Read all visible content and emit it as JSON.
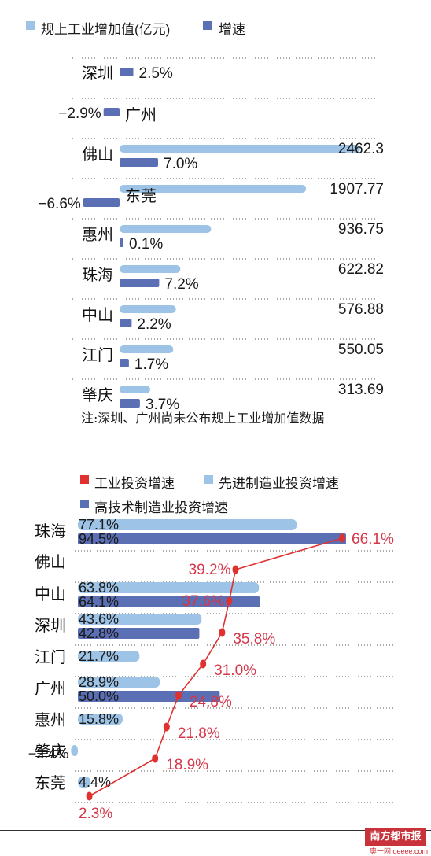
{
  "chart_data": [
    {
      "type": "bar",
      "orientation": "horizontal",
      "categories": [
        "深圳",
        "广州",
        "佛山",
        "东莞",
        "惠州",
        "珠海",
        "中山",
        "江门",
        "肇庆"
      ],
      "series": [
        {
          "name": "规上工业增加值(亿元)",
          "color": "#9dc3e6",
          "values": [
            null,
            null,
            2462.3,
            1907.77,
            936.75,
            622.82,
            576.88,
            550.05,
            313.69
          ],
          "labels": [
            "",
            "",
            "2462.3",
            "1907.77",
            "936.75",
            "622.82",
            "576.88",
            "550.05",
            "313.69"
          ]
        },
        {
          "name": "增速",
          "color": "#5b6fb5",
          "values": [
            2.5,
            -2.9,
            7.0,
            -6.6,
            0.1,
            7.2,
            2.2,
            1.7,
            3.7
          ],
          "labels": [
            "2.5%",
            "−2.9%",
            "7.0%",
            "−6.6%",
            "0.1%",
            "7.2%",
            "2.2%",
            "1.7%",
            "3.7%"
          ]
        }
      ],
      "note": "注:深圳、广州尚未公布规上工业增加值数据"
    },
    {
      "type": "bar+line",
      "orientation": "horizontal",
      "categories": [
        "珠海",
        "佛山",
        "中山",
        "深圳",
        "江门",
        "广州",
        "惠州",
        "肇庆",
        "东莞"
      ],
      "series": [
        {
          "name": "工业投资增速",
          "kind": "line",
          "color": "#e03131",
          "values": [
            66.1,
            39.2,
            37.6,
            35.8,
            31.0,
            24.8,
            21.8,
            18.9,
            2.3
          ],
          "labels": [
            "66.1%",
            "39.2%",
            "37.6%",
            "35.8%",
            "31.0%",
            "24.8%",
            "21.8%",
            "18.9%",
            "2.3%"
          ]
        },
        {
          "name": "先进制造业投资增速",
          "kind": "bar",
          "color": "#9dc3e6",
          "values": [
            77.1,
            null,
            63.8,
            43.6,
            21.7,
            28.9,
            15.8,
            -2.4,
            4.4
          ],
          "labels": [
            "77.1%",
            "",
            "63.8%",
            "43.6%",
            "21.7%",
            "28.9%",
            "15.8%",
            "−2.4%",
            "4.4%"
          ]
        },
        {
          "name": "高技术制造业投资增速",
          "kind": "bar",
          "color": "#5b6fb5",
          "values": [
            94.5,
            null,
            64.1,
            42.8,
            null,
            50.0,
            null,
            null,
            null
          ],
          "labels": [
            "94.5%",
            "",
            "64.1%",
            "42.8%",
            "",
            "50.0%",
            "",
            "",
            ""
          ]
        }
      ]
    }
  ],
  "brand": {
    "name": "南方都市报",
    "site": "奥一网 oeeee.com"
  }
}
